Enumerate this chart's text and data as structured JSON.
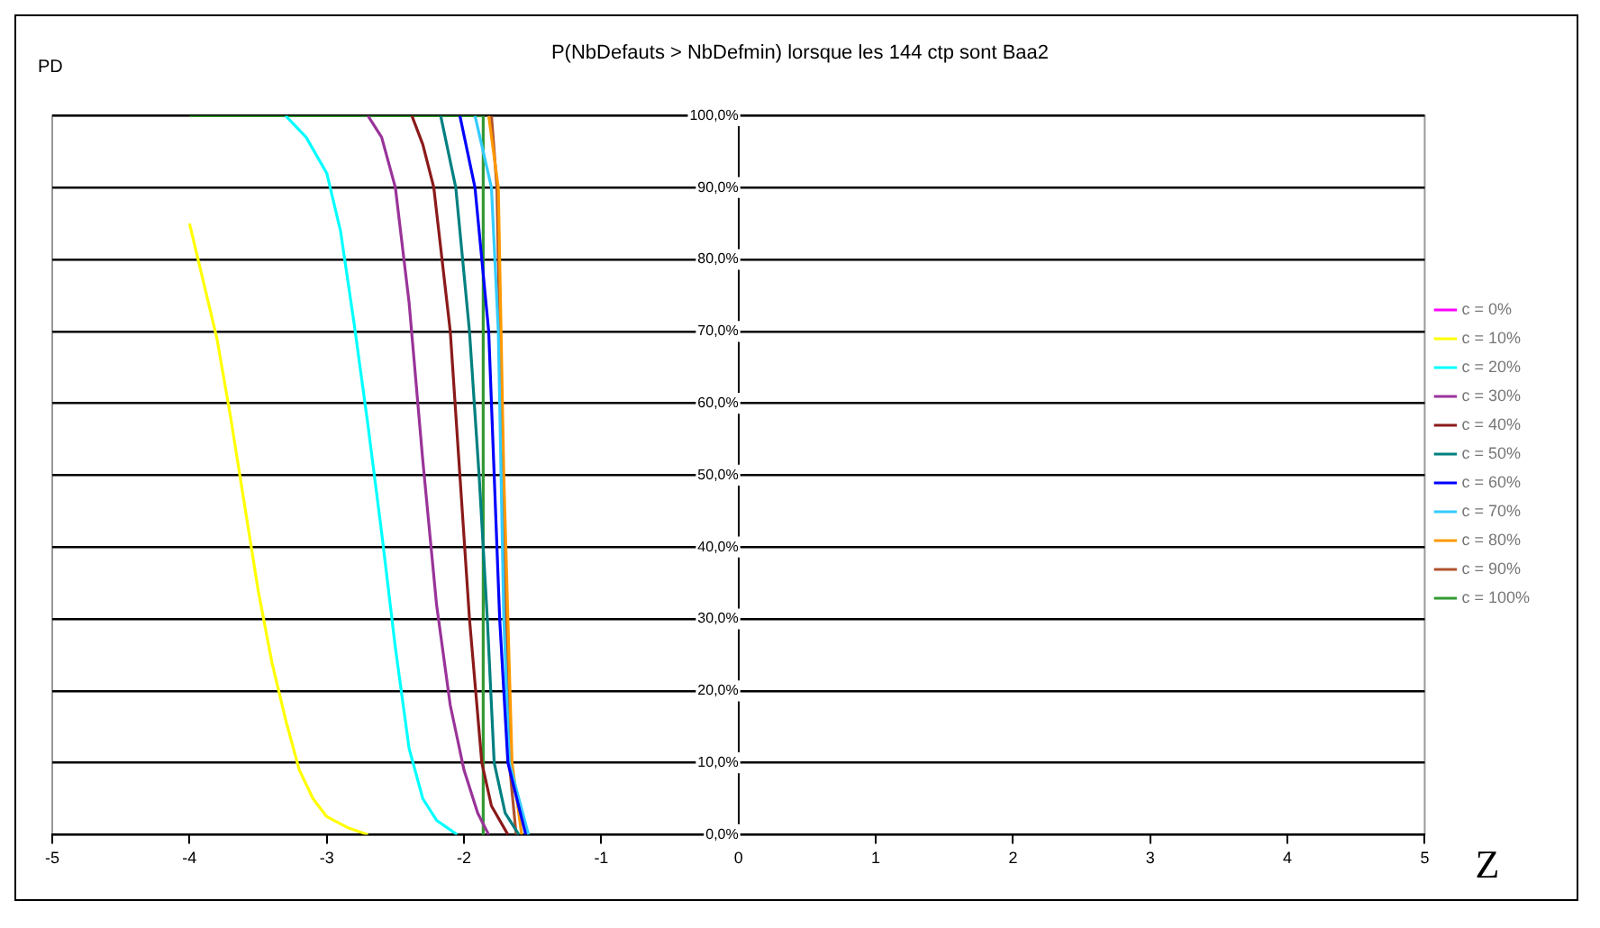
{
  "chart_data": {
    "type": "line",
    "title": "P(NbDefauts > NbDefmin) lorsque les 144 ctp sont Baa2",
    "xlabel": "Z",
    "ylabel": "PD",
    "xlim": [
      -5,
      5
    ],
    "xticks": [
      -5,
      -4,
      -3,
      -2,
      -1,
      0,
      1,
      2,
      3,
      4,
      5
    ],
    "ylim": [
      0,
      100
    ],
    "yticks": [
      {
        "value": 0,
        "label": "0,0%"
      },
      {
        "value": 10,
        "label": "10,0%"
      },
      {
        "value": 20,
        "label": "20,0%"
      },
      {
        "value": 30,
        "label": "30,0%"
      },
      {
        "value": 40,
        "label": "40,0%"
      },
      {
        "value": 50,
        "label": "50,0%"
      },
      {
        "value": 60,
        "label": "60,0%"
      },
      {
        "value": 70,
        "label": "70,0%"
      },
      {
        "value": 80,
        "label": "80,0%"
      },
      {
        "value": 90,
        "label": "90,0%"
      },
      {
        "value": 100,
        "label": "100,0%"
      }
    ],
    "grid": "y",
    "legend": "right",
    "marker": "none",
    "line_style": "solid",
    "series": [
      {
        "name": "c = 0%",
        "color": "#ff00ff"
      },
      {
        "name": "c = 10%",
        "color": "#ffff00",
        "x": [
          -4.0,
          -3.9,
          -3.8,
          -3.7,
          -3.6,
          -3.5,
          -3.4,
          -3.3,
          -3.2,
          -3.1,
          -3.0,
          -2.85,
          -2.7
        ],
        "values": [
          85,
          77,
          69,
          58,
          46,
          34,
          24,
          16,
          9,
          5,
          2.5,
          1,
          0
        ]
      },
      {
        "name": "c = 20%",
        "color": "#00ffff",
        "x": [
          -3.3,
          -3.15,
          -3.0,
          -2.9,
          -2.8,
          -2.7,
          -2.6,
          -2.5,
          -2.4,
          -2.3,
          -2.2,
          -2.05
        ],
        "values": [
          100,
          97,
          92,
          84,
          71,
          57,
          42,
          26,
          12,
          5,
          2,
          0
        ]
      },
      {
        "name": "c = 30%",
        "color": "#993399",
        "x": [
          -2.7,
          -2.6,
          -2.5,
          -2.4,
          -2.3,
          -2.2,
          -2.1,
          -2.0,
          -1.9,
          -1.82
        ],
        "values": [
          100,
          97,
          90,
          74,
          52,
          32,
          18,
          9,
          3,
          0
        ]
      },
      {
        "name": "c = 40%",
        "color": "#8b1a1a",
        "x": [
          -2.38,
          -2.3,
          -2.22,
          -2.1,
          -2.03,
          -1.96,
          -1.87,
          -1.8,
          -1.68
        ],
        "values": [
          100,
          96,
          90,
          70,
          50,
          30,
          10,
          4,
          0
        ]
      },
      {
        "name": "c = 50%",
        "color": "#008080",
        "x": [
          -2.17,
          -2.06,
          -1.96,
          -1.89,
          -1.83,
          -1.78,
          -1.7,
          -1.6
        ],
        "values": [
          100,
          90,
          70,
          50,
          30,
          10,
          3,
          0
        ]
      },
      {
        "name": "c = 60%",
        "color": "#0000ff",
        "x": [
          -2.03,
          -1.92,
          -1.82,
          -1.78,
          -1.74,
          -1.68,
          -1.55
        ],
        "values": [
          100,
          90,
          70,
          50,
          30,
          10,
          0
        ]
      },
      {
        "name": "c = 70%",
        "color": "#33ccff",
        "x": [
          -1.92,
          -1.8,
          -1.75,
          -1.73,
          -1.71,
          -1.67,
          -1.53
        ],
        "values": [
          100,
          90,
          70,
          50,
          30,
          10,
          0
        ]
      },
      {
        "name": "c = 80%",
        "color": "#ff9900",
        "x": [
          -1.82,
          -1.75,
          -1.71,
          -1.65,
          -1.58
        ],
        "values": [
          100,
          90,
          50,
          10,
          0
        ]
      },
      {
        "name": "c = 90%",
        "color": "#b0522d",
        "x": [
          -1.8,
          -1.76,
          -1.72,
          -1.67,
          -1.62
        ],
        "values": [
          100,
          90,
          50,
          10,
          0
        ]
      },
      {
        "name": "c = 100%",
        "color": "#339933",
        "x": [
          -4,
          -1.86,
          -1.86
        ],
        "values": [
          100,
          100,
          0
        ]
      }
    ]
  }
}
